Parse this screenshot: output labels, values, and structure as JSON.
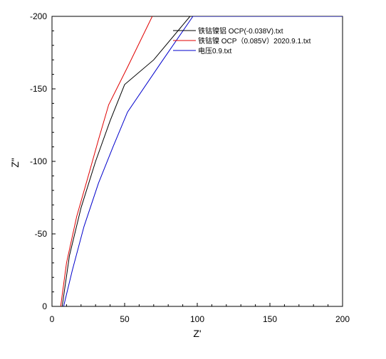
{
  "chart_data": {
    "type": "line",
    "xlabel": "Z'",
    "ylabel": "Z\"",
    "xlim": [
      0,
      200
    ],
    "ylim": [
      0,
      -200
    ],
    "y_axis_inverted": true,
    "grid": false,
    "legend_position": "top-right",
    "x_ticks": [
      "0",
      "50",
      "100",
      "150",
      "200"
    ],
    "y_ticks": [
      "0",
      "-50",
      "-100",
      "-150",
      "-200"
    ],
    "series": [
      {
        "name": "铁钴镍铝 OCP(-0.038V).txt",
        "color": "#000000",
        "points": [
          [
            7,
            0
          ],
          [
            12,
            -35
          ],
          [
            20,
            -68
          ],
          [
            30,
            -100
          ],
          [
            40,
            -128
          ],
          [
            50,
            -153
          ],
          [
            70,
            -170
          ],
          [
            95,
            -200
          ]
        ]
      },
      {
        "name": "铁钴镍 OCP（0.085V）2020.9.1.txt",
        "color": "#e00000",
        "points": [
          [
            6,
            0
          ],
          [
            10,
            -30
          ],
          [
            17,
            -62
          ],
          [
            25,
            -90
          ],
          [
            32,
            -115
          ],
          [
            39,
            -139
          ],
          [
            52,
            -165
          ],
          [
            69,
            -200
          ]
        ]
      },
      {
        "name": "电压0.9.txt",
        "color": "#0000cc",
        "points": [
          [
            8,
            0
          ],
          [
            14,
            -25
          ],
          [
            22,
            -55
          ],
          [
            32,
            -85
          ],
          [
            42,
            -110
          ],
          [
            52,
            -134
          ],
          [
            75,
            -168
          ],
          [
            97,
            -200
          ],
          [
            200,
            -200
          ]
        ]
      }
    ]
  }
}
